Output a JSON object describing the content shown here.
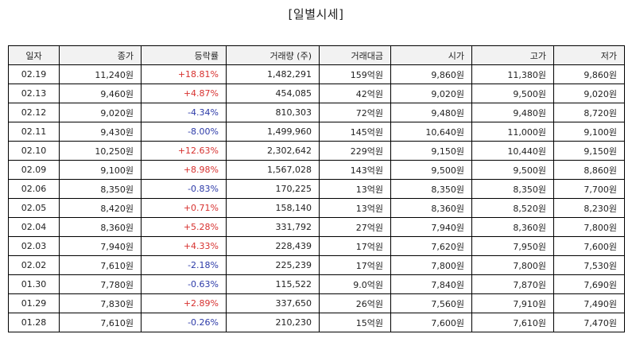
{
  "title": "[일별시세]",
  "colors": {
    "up": "#d7312f",
    "down": "#2c3aa8",
    "header_bg": "#f2f2f2"
  },
  "columns": [
    "일자",
    "종가",
    "등락률",
    "거래량 (주)",
    "거래대금",
    "시가",
    "고가",
    "저가"
  ],
  "rows": [
    {
      "date": "02.19",
      "close": "11,240원",
      "change": "+18.81%",
      "dir": "up",
      "volume": "1,482,291",
      "amount": "159억원",
      "open": "9,860원",
      "high": "11,380원",
      "low": "9,860원"
    },
    {
      "date": "02.13",
      "close": "9,460원",
      "change": "+4.87%",
      "dir": "up",
      "volume": "454,085",
      "amount": "42억원",
      "open": "9,020원",
      "high": "9,500원",
      "low": "9,020원"
    },
    {
      "date": "02.12",
      "close": "9,020원",
      "change": "-4.34%",
      "dir": "down",
      "volume": "810,303",
      "amount": "72억원",
      "open": "9,480원",
      "high": "9,480원",
      "low": "8,720원"
    },
    {
      "date": "02.11",
      "close": "9,430원",
      "change": "-8.00%",
      "dir": "down",
      "volume": "1,499,960",
      "amount": "145억원",
      "open": "10,640원",
      "high": "11,000원",
      "low": "9,100원"
    },
    {
      "date": "02.10",
      "close": "10,250원",
      "change": "+12.63%",
      "dir": "up",
      "volume": "2,302,642",
      "amount": "229억원",
      "open": "9,150원",
      "high": "10,440원",
      "low": "9,150원"
    },
    {
      "date": "02.09",
      "close": "9,100원",
      "change": "+8.98%",
      "dir": "up",
      "volume": "1,567,028",
      "amount": "143억원",
      "open": "9,500원",
      "high": "9,500원",
      "low": "8,860원"
    },
    {
      "date": "02.06",
      "close": "8,350원",
      "change": "-0.83%",
      "dir": "down",
      "volume": "170,225",
      "amount": "13억원",
      "open": "8,350원",
      "high": "8,350원",
      "low": "7,700원"
    },
    {
      "date": "02.05",
      "close": "8,420원",
      "change": "+0.71%",
      "dir": "up",
      "volume": "158,140",
      "amount": "13억원",
      "open": "8,360원",
      "high": "8,520원",
      "low": "8,230원"
    },
    {
      "date": "02.04",
      "close": "8,360원",
      "change": "+5.28%",
      "dir": "up",
      "volume": "331,792",
      "amount": "27억원",
      "open": "7,940원",
      "high": "8,360원",
      "low": "7,800원"
    },
    {
      "date": "02.03",
      "close": "7,940원",
      "change": "+4.33%",
      "dir": "up",
      "volume": "228,439",
      "amount": "17억원",
      "open": "7,620원",
      "high": "7,950원",
      "low": "7,600원"
    },
    {
      "date": "02.02",
      "close": "7,610원",
      "change": "-2.18%",
      "dir": "down",
      "volume": "225,239",
      "amount": "17억원",
      "open": "7,800원",
      "high": "7,800원",
      "low": "7,530원"
    },
    {
      "date": "01.30",
      "close": "7,780원",
      "change": "-0.63%",
      "dir": "down",
      "volume": "115,522",
      "amount": "9.0억원",
      "open": "7,840원",
      "high": "7,870원",
      "low": "7,690원"
    },
    {
      "date": "01.29",
      "close": "7,830원",
      "change": "+2.89%",
      "dir": "up",
      "volume": "337,650",
      "amount": "26억원",
      "open": "7,560원",
      "high": "7,910원",
      "low": "7,490원"
    },
    {
      "date": "01.28",
      "close": "7,610원",
      "change": "-0.26%",
      "dir": "down",
      "volume": "210,230",
      "amount": "15억원",
      "open": "7,600원",
      "high": "7,610원",
      "low": "7,470원"
    }
  ]
}
